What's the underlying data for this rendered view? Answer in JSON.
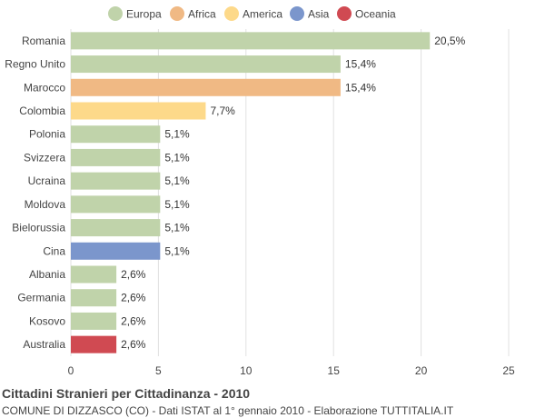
{
  "chart_data": {
    "type": "bar",
    "orientation": "horizontal",
    "title": "Cittadini Stranieri per Cittadinanza - 2010",
    "subtitle": "COMUNE DI DIZZASCO (CO) - Dati ISTAT al 1° gennaio 2010 - Elaborazione TUTTITALIA.IT",
    "xlim": [
      0,
      25
    ],
    "xticks": [
      0,
      5,
      10,
      15,
      20,
      25
    ],
    "grid": true,
    "legend_position": "top",
    "legend": [
      {
        "name": "Europa",
        "color": "#c0d3aa"
      },
      {
        "name": "Africa",
        "color": "#f0b984"
      },
      {
        "name": "America",
        "color": "#fdd98a"
      },
      {
        "name": "Asia",
        "color": "#7b96cc"
      },
      {
        "name": "Oceania",
        "color": "#d04a52"
      }
    ],
    "categories": [
      "Romania",
      "Regno Unito",
      "Marocco",
      "Colombia",
      "Polonia",
      "Svizzera",
      "Ucraina",
      "Moldova",
      "Bielorussia",
      "Cina",
      "Albania",
      "Germania",
      "Kosovo",
      "Australia"
    ],
    "values": [
      20.5,
      15.4,
      15.4,
      7.7,
      5.1,
      5.1,
      5.1,
      5.1,
      5.1,
      5.1,
      2.6,
      2.6,
      2.6,
      2.6
    ],
    "value_labels": [
      "20,5%",
      "15,4%",
      "15,4%",
      "7,7%",
      "5,1%",
      "5,1%",
      "5,1%",
      "5,1%",
      "5,1%",
      "5,1%",
      "2,6%",
      "2,6%",
      "2,6%",
      "2,6%"
    ],
    "continents": [
      "Europa",
      "Europa",
      "Africa",
      "America",
      "Europa",
      "Europa",
      "Europa",
      "Europa",
      "Europa",
      "Asia",
      "Europa",
      "Europa",
      "Europa",
      "Oceania"
    ]
  }
}
